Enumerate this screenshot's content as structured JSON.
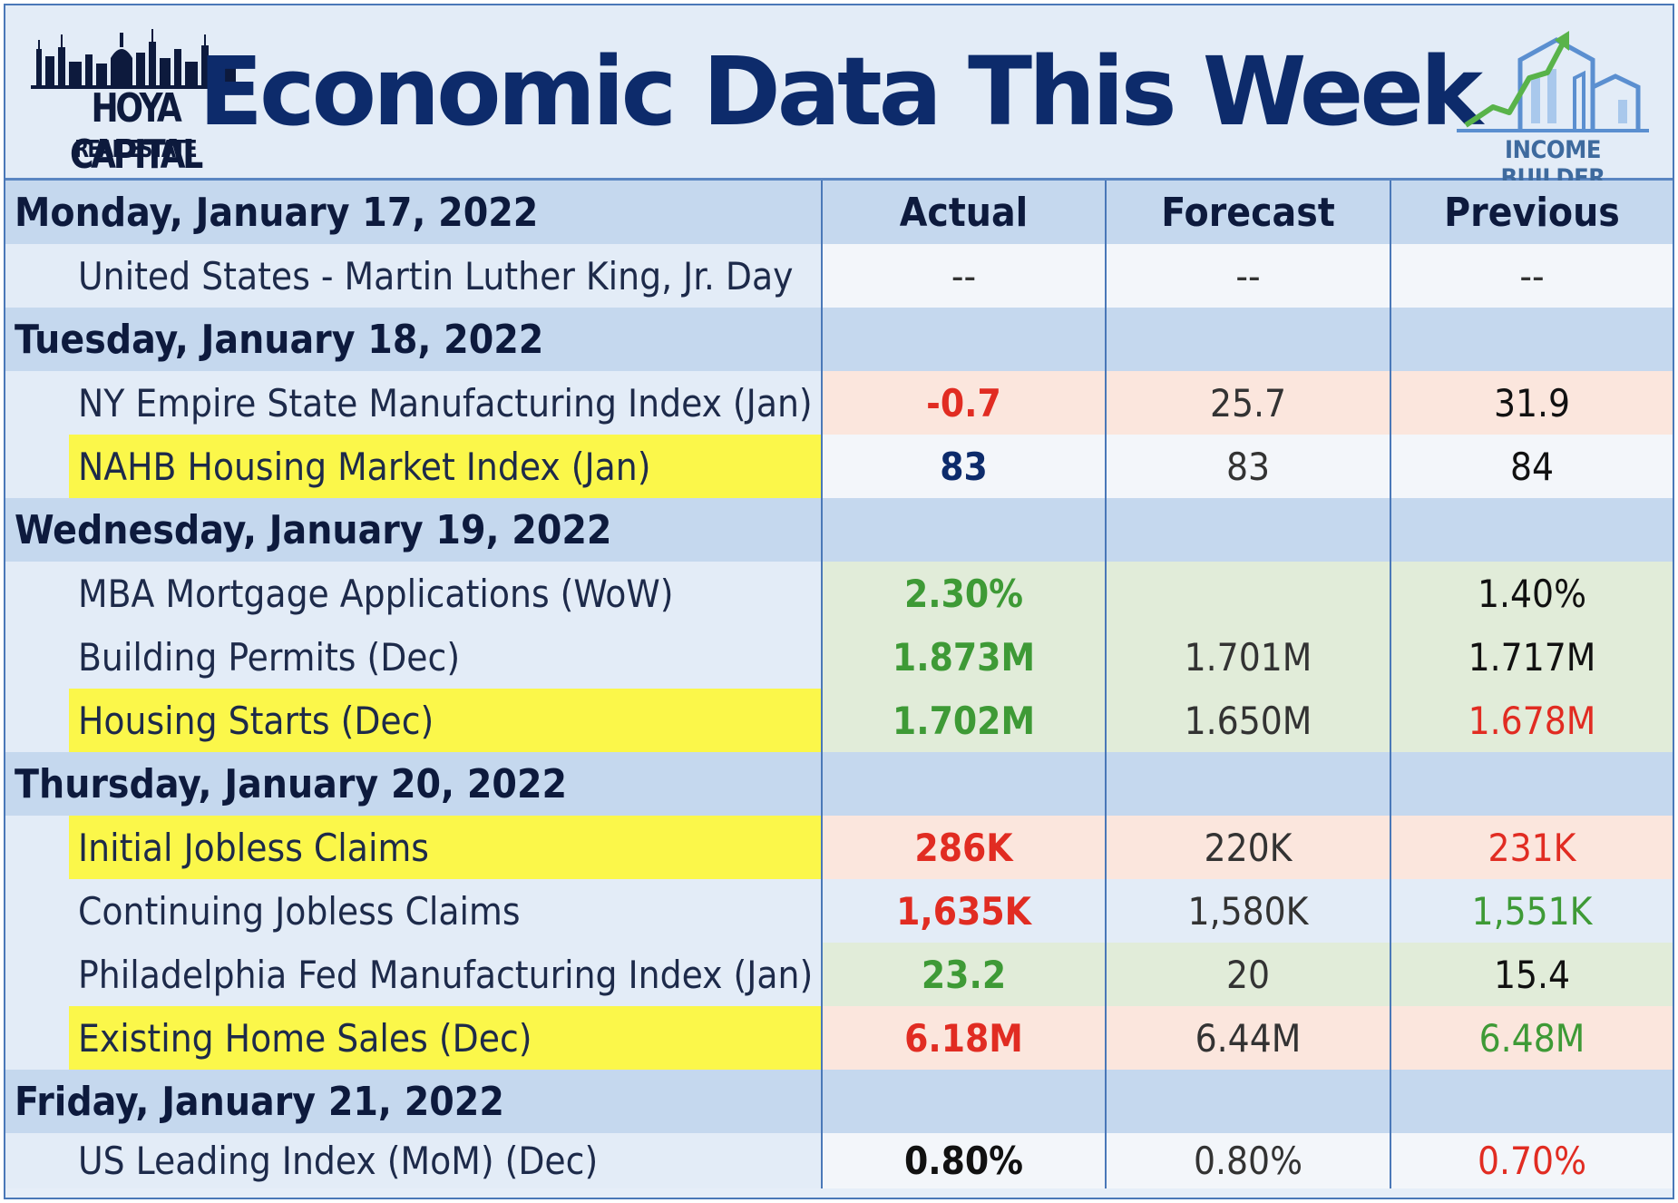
{
  "header": {
    "title": "Economic Data This Week",
    "logo_left": {
      "name": "HOYA CAPITAL",
      "sub": "REAL ESTATE"
    },
    "logo_right": {
      "name": "INCOME BUILDER"
    }
  },
  "columns": {
    "actual": "Actual",
    "forecast": "Forecast",
    "previous": "Previous"
  },
  "days": [
    {
      "label": "Monday, January 17, 2022",
      "events": [
        {
          "name": "United States - Martin Luther King, Jr. Day",
          "highlight": false,
          "actual": "--",
          "forecast": "--",
          "previous": "--"
        }
      ]
    },
    {
      "label": "Tuesday, January 18, 2022",
      "events": [
        {
          "name": "NY Empire State Manufacturing Index (Jan)",
          "highlight": false,
          "actual": "-0.7",
          "forecast": "25.7",
          "previous": "31.9"
        },
        {
          "name": "NAHB Housing Market Index (Jan)",
          "highlight": true,
          "actual": "83",
          "forecast": "83",
          "previous": "84"
        }
      ]
    },
    {
      "label": "Wednesday, January 19, 2022",
      "events": [
        {
          "name": "MBA Mortgage Applications (WoW)",
          "highlight": false,
          "actual": "2.30%",
          "forecast": "",
          "previous": "1.40%"
        },
        {
          "name": "Building Permits (Dec)",
          "highlight": false,
          "actual": "1.873M",
          "forecast": "1.701M",
          "previous": "1.717M"
        },
        {
          "name": "Housing Starts (Dec)",
          "highlight": true,
          "actual": "1.702M",
          "forecast": "1.650M",
          "previous": "1.678M"
        }
      ]
    },
    {
      "label": "Thursday, January 20, 2022",
      "events": [
        {
          "name": "Initial Jobless Claims",
          "highlight": true,
          "actual": "286K",
          "forecast": "220K",
          "previous": "231K"
        },
        {
          "name": "Continuing Jobless Claims",
          "highlight": false,
          "actual": "1,635K",
          "forecast": "1,580K",
          "previous": "1,551K"
        },
        {
          "name": "Philadelphia Fed Manufacturing Index (Jan)",
          "highlight": false,
          "actual": "23.2",
          "forecast": "20",
          "previous": "15.4"
        },
        {
          "name": "Existing Home Sales (Dec)",
          "highlight": true,
          "actual": "6.18M",
          "forecast": "6.44M",
          "previous": "6.48M"
        }
      ]
    },
    {
      "label": "Friday, January 21, 2022",
      "events": [
        {
          "name": "US Leading Index (MoM) (Dec)",
          "highlight": false,
          "actual": "0.80%",
          "forecast": "0.80%",
          "previous": "0.70%"
        }
      ]
    }
  ],
  "colors": {
    "title": "#0d2b6b",
    "highlight": "#fbf74a",
    "day_row": "#c5d8ee",
    "negative": "#e12c22",
    "positive": "#3e9a36"
  }
}
